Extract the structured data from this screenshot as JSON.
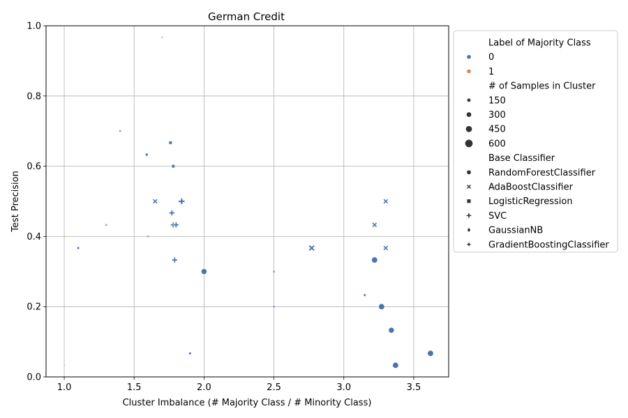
{
  "chart_data": {
    "type": "scatter",
    "title": "German Credit",
    "xlabel": "Cluster Imbalance (# Majority Class / # Minority Class)",
    "ylabel": "Test Precision",
    "xlim": [
      0.87,
      3.75
    ],
    "ylim": [
      0.0,
      1.0
    ],
    "xticks": [
      1.0,
      1.5,
      2.0,
      2.5,
      3.0,
      3.5
    ],
    "xtick_labels": [
      "1.0",
      "1.5",
      "2.0",
      "2.5",
      "3.0",
      "3.5"
    ],
    "yticks": [
      0.0,
      0.2,
      0.4,
      0.6,
      0.8,
      1.0
    ],
    "ytick_labels": [
      "0.0",
      "0.2",
      "0.4",
      "0.6",
      "0.8",
      "1.0"
    ],
    "grid": true,
    "legend_placement": "outside-right",
    "colors": {
      "0": "#4c72b0",
      "1": "#dd8452"
    },
    "legend": {
      "hue_title": "Label of Majority Class",
      "hue_entries": [
        "0",
        "1"
      ],
      "size_title": "# of Samples in Cluster",
      "size_entries": [
        "150",
        "300",
        "450",
        "600"
      ],
      "style_title": "Base Classifier",
      "style_entries": [
        "RandomForestClassifier",
        "AdaBoostClassifier",
        "LogisticRegression",
        "SVC",
        "GaussianNB",
        "GradientBoostingClassifier"
      ]
    },
    "points": [
      {
        "x": 1.1,
        "y": 0.367,
        "label": "0",
        "samples": 60,
        "classifier": "RandomForestClassifier"
      },
      {
        "x": 1.9,
        "y": 0.067,
        "label": "0",
        "samples": 60,
        "classifier": "RandomForestClassifier"
      },
      {
        "x": 2.0,
        "y": 0.3,
        "label": "0",
        "samples": 400,
        "classifier": "RandomForestClassifier"
      },
      {
        "x": 3.22,
        "y": 0.333,
        "label": "0",
        "samples": 430,
        "classifier": "RandomForestClassifier"
      },
      {
        "x": 3.27,
        "y": 0.2,
        "label": "0",
        "samples": 430,
        "classifier": "RandomForestClassifier"
      },
      {
        "x": 3.34,
        "y": 0.133,
        "label": "0",
        "samples": 400,
        "classifier": "RandomForestClassifier"
      },
      {
        "x": 3.37,
        "y": 0.033,
        "label": "0",
        "samples": 430,
        "classifier": "RandomForestClassifier"
      },
      {
        "x": 3.62,
        "y": 0.067,
        "label": "0",
        "samples": 430,
        "classifier": "RandomForestClassifier"
      },
      {
        "x": 2.5,
        "y": 0.2,
        "label": "0",
        "samples": 15,
        "classifier": "RandomForestClassifier"
      },
      {
        "x": 1.4,
        "y": 0.7,
        "label": "0",
        "samples": 60,
        "classifier": "AdaBoostClassifier"
      },
      {
        "x": 1.3,
        "y": 0.433,
        "label": "0",
        "samples": 60,
        "classifier": "AdaBoostClassifier"
      },
      {
        "x": 1.6,
        "y": 0.4,
        "label": "0",
        "samples": 50,
        "classifier": "AdaBoostClassifier"
      },
      {
        "x": 1.65,
        "y": 0.5,
        "label": "0",
        "samples": 320,
        "classifier": "AdaBoostClassifier"
      },
      {
        "x": 2.5,
        "y": 0.3,
        "label": "0",
        "samples": 60,
        "classifier": "AdaBoostClassifier"
      },
      {
        "x": 2.77,
        "y": 0.367,
        "label": "0",
        "samples": 430,
        "classifier": "AdaBoostClassifier"
      },
      {
        "x": 3.22,
        "y": 0.433,
        "label": "0",
        "samples": 320,
        "classifier": "AdaBoostClassifier"
      },
      {
        "x": 3.3,
        "y": 0.5,
        "label": "0",
        "samples": 320,
        "classifier": "AdaBoostClassifier"
      },
      {
        "x": 3.3,
        "y": 0.367,
        "label": "0",
        "samples": 320,
        "classifier": "AdaBoostClassifier"
      },
      {
        "x": 1.59,
        "y": 0.633,
        "label": "0",
        "samples": 100,
        "classifier": "LogisticRegression"
      },
      {
        "x": 1.76,
        "y": 0.667,
        "label": "0",
        "samples": 170,
        "classifier": "LogisticRegression"
      },
      {
        "x": 1.78,
        "y": 0.6,
        "label": "0",
        "samples": 170,
        "classifier": "LogisticRegression"
      },
      {
        "x": 1.77,
        "y": 0.467,
        "label": "0",
        "samples": 320,
        "classifier": "SVC"
      },
      {
        "x": 1.78,
        "y": 0.433,
        "label": "0",
        "samples": 320,
        "classifier": "SVC"
      },
      {
        "x": 1.8,
        "y": 0.433,
        "label": "0",
        "samples": 320,
        "classifier": "SVC"
      },
      {
        "x": 1.79,
        "y": 0.333,
        "label": "0",
        "samples": 320,
        "classifier": "SVC"
      },
      {
        "x": 1.84,
        "y": 0.5,
        "label": "0",
        "samples": 400,
        "classifier": "SVC"
      },
      {
        "x": 3.15,
        "y": 0.233,
        "label": "0",
        "samples": 170,
        "classifier": "GradientBoostingClassifier"
      },
      {
        "x": 1.0,
        "y": 0.4,
        "label": "1",
        "samples": 15,
        "classifier": "RandomForestClassifier"
      },
      {
        "x": 1.0,
        "y": 0.033,
        "label": "1",
        "samples": 30,
        "classifier": "GaussianNB"
      },
      {
        "x": 1.7,
        "y": 0.967,
        "label": "1",
        "samples": 40,
        "classifier": "GradientBoostingClassifier"
      }
    ]
  }
}
